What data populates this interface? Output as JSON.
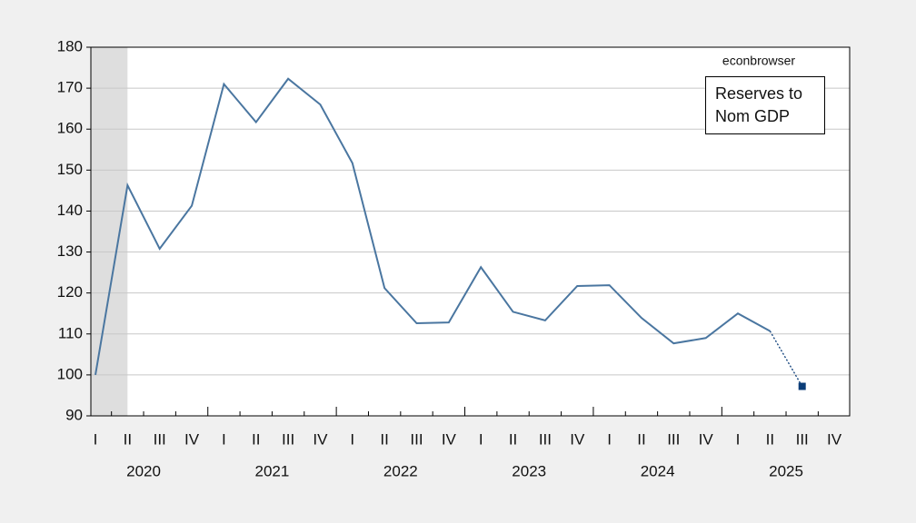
{
  "chart_data": {
    "type": "line",
    "annotation": "econbrowser",
    "categories": [
      "I",
      "II",
      "III",
      "IV",
      "I",
      "II",
      "III",
      "IV",
      "I",
      "II",
      "III",
      "IV",
      "I",
      "II",
      "III",
      "IV",
      "I",
      "II",
      "III",
      "IV",
      "I",
      "II",
      "III",
      "IV"
    ],
    "years": [
      "2020",
      "2021",
      "2022",
      "2023",
      "2024",
      "2025"
    ],
    "series": [
      {
        "name": "Reserves to Nom GDP",
        "color": "#4a76a0",
        "values": [
          100,
          146.3,
          130.8,
          141.3,
          171,
          161.7,
          172.3,
          166,
          151.7,
          121.2,
          112.6,
          112.8,
          126.3,
          115.4,
          113.3,
          121.7,
          121.9,
          113.9,
          107.7,
          109,
          115,
          110.7,
          97.2,
          null
        ]
      }
    ],
    "projected_from_index": 21,
    "projection_color": "#0b3d78",
    "shaded_range": [
      0,
      1
    ],
    "ylim": [
      90,
      180
    ],
    "yticks": [
      90,
      100,
      110,
      120,
      130,
      140,
      150,
      160,
      170,
      180
    ],
    "grid": true
  }
}
